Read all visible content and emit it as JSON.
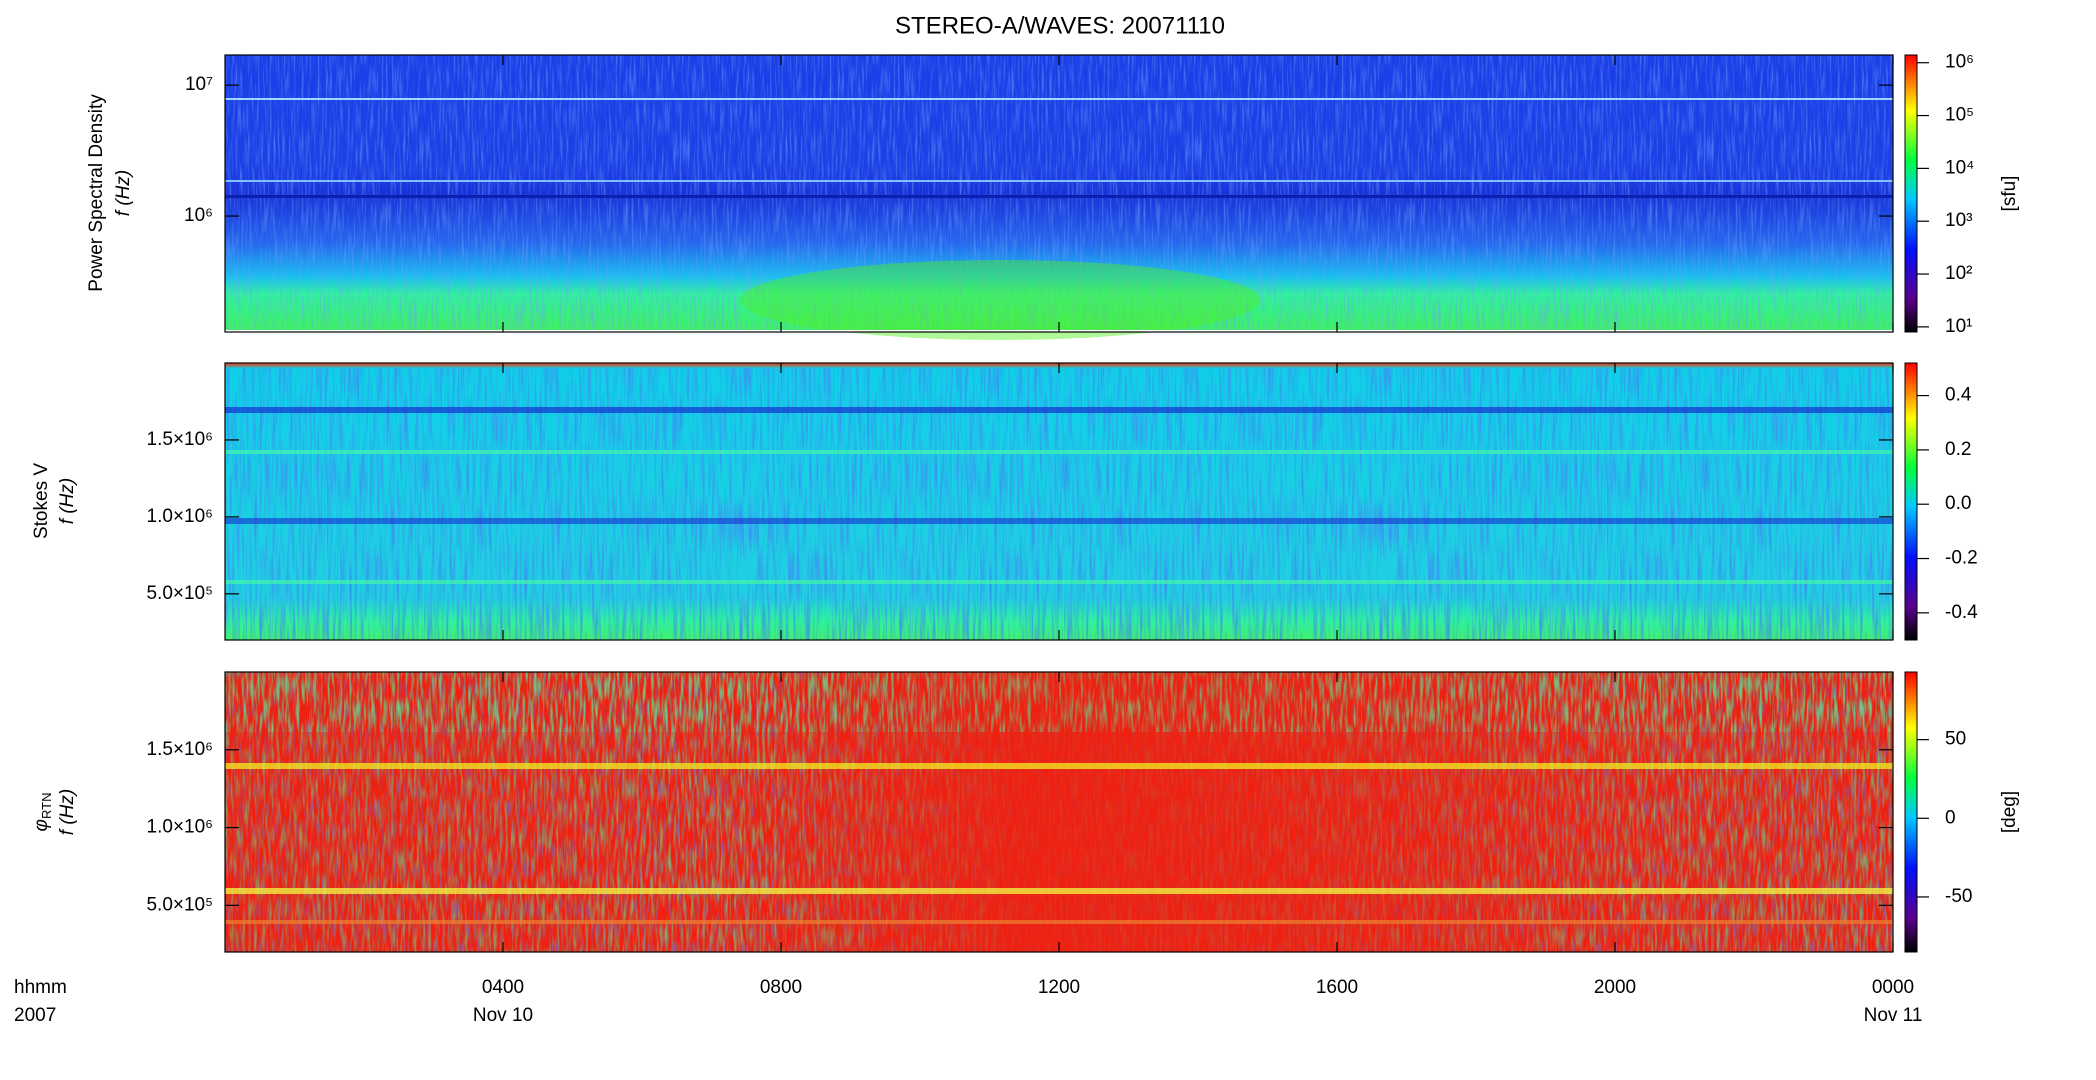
{
  "chart_data": {
    "type": "spectrogram",
    "title": "STEREO-A/WAVES: 20071110",
    "xlim": [
      0,
      24
    ],
    "xticks": [
      {
        "value": 4,
        "label": "0400"
      },
      {
        "value": 8,
        "label": "0800"
      },
      {
        "value": 12,
        "label": "1200"
      },
      {
        "value": 16,
        "label": "1600"
      },
      {
        "value": 20,
        "label": "2000"
      },
      {
        "value": 24,
        "label": "0000"
      }
    ],
    "x_date_labels": [
      {
        "value": 4,
        "label": "Nov 10"
      },
      {
        "value": 24,
        "label": "Nov 11"
      }
    ],
    "x_corner_labels": [
      "hhmm",
      "2007"
    ],
    "panels": [
      {
        "ylabel": [
          "Power Spectral Density",
          "f (Hz)"
        ],
        "yscale": "log",
        "ylim": [
          130000,
          17000000
        ],
        "yticks": [
          {
            "value": 1000000,
            "label": "10⁶"
          },
          {
            "value": 10000000,
            "label": "10⁷"
          }
        ],
        "colorbar": {
          "label": "[sfu]",
          "scale": "log",
          "lim": [
            8,
            1400000
          ],
          "ticks": [
            {
              "value": 10,
              "label": "10¹"
            },
            {
              "value": 100,
              "label": "10²"
            },
            {
              "value": 1000,
              "label": "10³"
            },
            {
              "value": 10000,
              "label": "10⁴"
            },
            {
              "value": 100000,
              "label": "10⁵"
            },
            {
              "value": 1000000,
              "label": "10⁶"
            }
          ]
        }
      },
      {
        "ylabel": [
          "Stokes V",
          "f (Hz)"
        ],
        "yscale": "linear",
        "ylim": [
          200000,
          2000000
        ],
        "yticks": [
          {
            "value": 500000,
            "label": "5.0×10⁵"
          },
          {
            "value": 1000000,
            "label": "1.0×10⁶"
          },
          {
            "value": 1500000,
            "label": "1.5×10⁶"
          }
        ],
        "colorbar": {
          "label": null,
          "scale": "linear",
          "lim": [
            -0.5,
            0.52
          ],
          "ticks": [
            -0.4,
            -0.2,
            {
              "value": 0,
              "label": "0.0"
            },
            0.2,
            0.4
          ]
        }
      },
      {
        "ylabel": [
          "φ",
          "RTN",
          "f (Hz)"
        ],
        "yscale": "linear",
        "ylim": [
          200000,
          2000000
        ],
        "yticks": [
          {
            "value": 500000,
            "label": "5.0×10⁵"
          },
          {
            "value": 1000000,
            "label": "1.0×10⁶"
          },
          {
            "value": 1500000,
            "label": "1.5×10⁶"
          }
        ],
        "colorbar": {
          "label": "[deg]",
          "scale": "linear",
          "lim": [
            -85,
            93
          ],
          "ticks": [
            -50,
            0,
            50
          ]
        }
      }
    ]
  }
}
